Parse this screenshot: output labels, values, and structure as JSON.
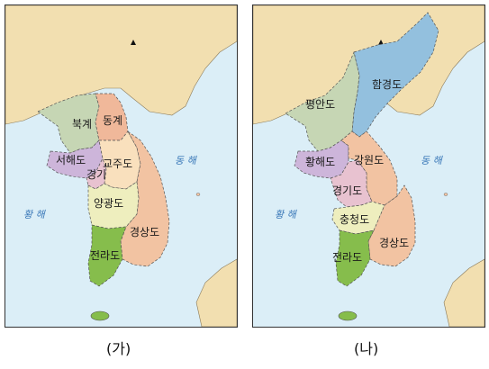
{
  "panel_a": {
    "caption": "(가)",
    "regions": {
      "bukgye": "북계",
      "donggye": "동계",
      "seohaedo": "서해도",
      "gyeongi": "경기",
      "gyojudo": "교주도",
      "yanggwangdo": "양광도",
      "gyeongsangdo": "경상도",
      "jeollado": "전라도"
    },
    "seas": {
      "east": "동 해",
      "west": "황 해"
    },
    "colors": {
      "sea": "#dbeef7",
      "land_outside": "#f2dfb0",
      "bukgye": "#c6d6b4",
      "donggye": "#f0b89a",
      "seohaedo": "#cdb5da",
      "gyeongi": "#e8c2d0",
      "gyojudo": "#f9e0bd",
      "yanggwangdo": "#eeeebe",
      "gyeongsangdo": "#f2c3a2",
      "jeollado": "#86bd4c"
    }
  },
  "panel_b": {
    "caption": "(나)",
    "regions": {
      "hamgyeongdo": "함경도",
      "pyeongando": "평안도",
      "hwanghaedo": "황해도",
      "gangwondo": "강원도",
      "gyeonggido": "경기도",
      "chungcheongdo": "충청도",
      "gyeongsangdo": "경상도",
      "jeollado": "전라도"
    },
    "seas": {
      "east": "동 해",
      "west": "황 해"
    },
    "colors": {
      "sea": "#dbeef7",
      "land_outside": "#f2dfb0",
      "hamgyeongdo": "#93c0de",
      "pyeongando": "#c6d6b4",
      "hwanghaedo": "#cdb5da",
      "gangwondo": "#f2c3a2",
      "gyeonggido": "#e8c2d0",
      "chungcheongdo": "#eeeebe",
      "gyeongsangdo": "#f2c3a2",
      "jeollado": "#86bd4c"
    }
  }
}
